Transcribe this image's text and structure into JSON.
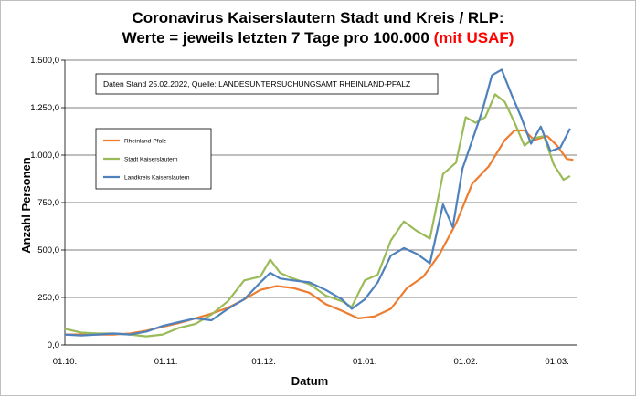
{
  "chart_data": {
    "type": "line",
    "title_line1": "Coronavirus Kaiserslautern Stadt und Kreis / RLP:",
    "title_line2_black": "Werte = jeweils letzten 7 Tage pro 100.000 ",
    "title_line2_red": "(mit USAF)",
    "ylabel": "Anzahl Personen",
    "xlabel": "Datum",
    "note": "Daten Stand 25.02.2022, Quelle: LANDESUNTERSUCHUNGSAMT RHEINLAND-PFALZ",
    "ylim": [
      0,
      1500
    ],
    "xlim": [
      0,
      157
    ],
    "yticks": [
      {
        "value": 0,
        "label": "0,0"
      },
      {
        "value": 250,
        "label": "250,0"
      },
      {
        "value": 500,
        "label": "500,0"
      },
      {
        "value": 750,
        "label": "750,0"
      },
      {
        "value": 1000,
        "label": "1.000,0"
      },
      {
        "value": 1250,
        "label": "1.250,0"
      },
      {
        "value": 1500,
        "label": "1.500,0"
      }
    ],
    "xticks": [
      {
        "value": 0,
        "label": "01.10."
      },
      {
        "value": 31,
        "label": "01.11."
      },
      {
        "value": 61,
        "label": "01.12."
      },
      {
        "value": 92,
        "label": "01.01."
      },
      {
        "value": 123,
        "label": "01.02."
      },
      {
        "value": 151,
        "label": "01.03."
      }
    ],
    "grid": true,
    "legend_position": "left",
    "series": [
      {
        "name": "Rheinland-Pfalz",
        "color": "#ed7d31",
        "points": [
          [
            0,
            55
          ],
          [
            5,
            55
          ],
          [
            10,
            55
          ],
          [
            15,
            55
          ],
          [
            20,
            60
          ],
          [
            25,
            75
          ],
          [
            30,
            95
          ],
          [
            35,
            115
          ],
          [
            40,
            140
          ],
          [
            45,
            165
          ],
          [
            50,
            195
          ],
          [
            55,
            240
          ],
          [
            60,
            290
          ],
          [
            65,
            310
          ],
          [
            70,
            300
          ],
          [
            75,
            275
          ],
          [
            80,
            215
          ],
          [
            85,
            180
          ],
          [
            90,
            140
          ],
          [
            95,
            150
          ],
          [
            100,
            190
          ],
          [
            105,
            300
          ],
          [
            110,
            360
          ],
          [
            115,
            480
          ],
          [
            120,
            640
          ],
          [
            125,
            850
          ],
          [
            130,
            940
          ],
          [
            135,
            1080
          ],
          [
            138,
            1130
          ],
          [
            141,
            1130
          ],
          [
            144,
            1080
          ],
          [
            148,
            1100
          ],
          [
            151,
            1050
          ],
          [
            154,
            980
          ],
          [
            156,
            975
          ]
        ]
      },
      {
        "name": "Stadt Kaiserslautern",
        "color": "#9bbb59",
        "points": [
          [
            0,
            85
          ],
          [
            5,
            65
          ],
          [
            10,
            60
          ],
          [
            15,
            60
          ],
          [
            20,
            55
          ],
          [
            25,
            45
          ],
          [
            30,
            55
          ],
          [
            35,
            90
          ],
          [
            40,
            110
          ],
          [
            45,
            160
          ],
          [
            50,
            230
          ],
          [
            55,
            340
          ],
          [
            60,
            360
          ],
          [
            63,
            450
          ],
          [
            66,
            380
          ],
          [
            70,
            350
          ],
          [
            75,
            320
          ],
          [
            80,
            260
          ],
          [
            85,
            230
          ],
          [
            88,
            200
          ],
          [
            92,
            340
          ],
          [
            96,
            370
          ],
          [
            100,
            550
          ],
          [
            104,
            650
          ],
          [
            108,
            600
          ],
          [
            112,
            560
          ],
          [
            116,
            900
          ],
          [
            120,
            960
          ],
          [
            123,
            1200
          ],
          [
            126,
            1170
          ],
          [
            129,
            1200
          ],
          [
            132,
            1320
          ],
          [
            135,
            1280
          ],
          [
            138,
            1170
          ],
          [
            141,
            1050
          ],
          [
            144,
            1090
          ],
          [
            147,
            1100
          ],
          [
            150,
            950
          ],
          [
            153,
            870
          ],
          [
            155,
            890
          ]
        ]
      },
      {
        "name": "Landkreis Kaiserslautern",
        "color": "#4f81bd",
        "points": [
          [
            0,
            55
          ],
          [
            5,
            50
          ],
          [
            10,
            55
          ],
          [
            15,
            60
          ],
          [
            20,
            55
          ],
          [
            25,
            70
          ],
          [
            30,
            100
          ],
          [
            35,
            120
          ],
          [
            40,
            140
          ],
          [
            45,
            130
          ],
          [
            50,
            190
          ],
          [
            55,
            240
          ],
          [
            60,
            330
          ],
          [
            63,
            380
          ],
          [
            66,
            350
          ],
          [
            70,
            340
          ],
          [
            75,
            330
          ],
          [
            80,
            290
          ],
          [
            85,
            240
          ],
          [
            88,
            190
          ],
          [
            92,
            240
          ],
          [
            96,
            330
          ],
          [
            100,
            470
          ],
          [
            104,
            510
          ],
          [
            108,
            480
          ],
          [
            112,
            430
          ],
          [
            116,
            740
          ],
          [
            119,
            620
          ],
          [
            122,
            930
          ],
          [
            125,
            1080
          ],
          [
            128,
            1230
          ],
          [
            131,
            1420
          ],
          [
            134,
            1450
          ],
          [
            137,
            1320
          ],
          [
            140,
            1200
          ],
          [
            143,
            1060
          ],
          [
            146,
            1150
          ],
          [
            149,
            1020
          ],
          [
            152,
            1040
          ],
          [
            155,
            1140
          ]
        ]
      }
    ]
  }
}
